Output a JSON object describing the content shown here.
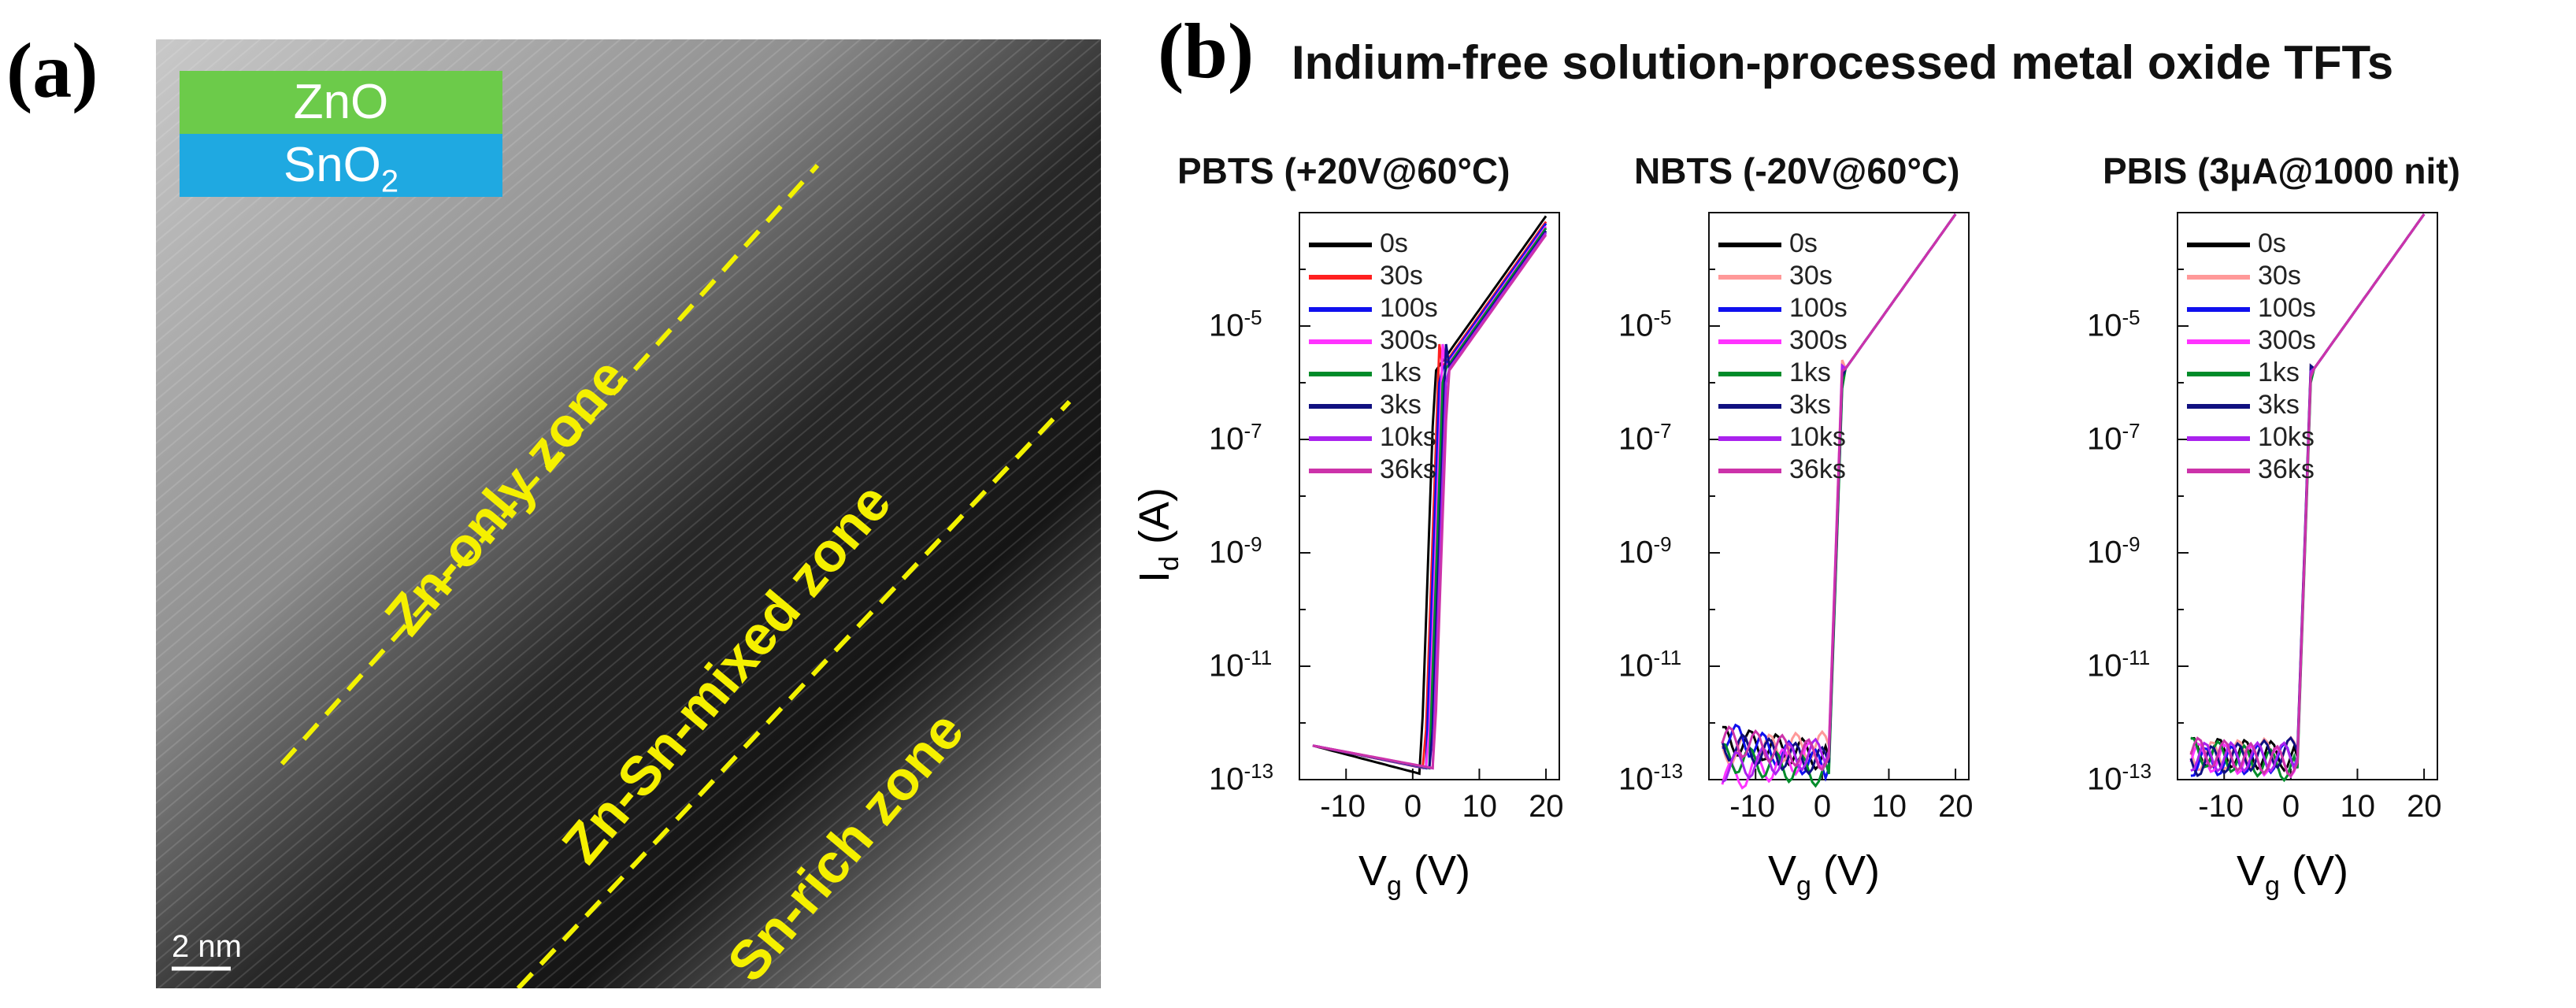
{
  "panel_a": {
    "label": "(a)",
    "layers": [
      {
        "name": "ZnO",
        "color": "#6ccb4a"
      },
      {
        "name": "SnO",
        "sub": "2",
        "color": "#1fa9e1"
      }
    ],
    "zones": [
      "Zn-only zone",
      "Zn-Sn-mixed zone",
      "Sn-rich zone"
    ],
    "scale_bar": "2 nm"
  },
  "panel_b": {
    "label": "(b)",
    "title": "Indium-free solution-processed metal oxide TFTs",
    "ylabel_main": "I",
    "ylabel_sub": "d",
    "ylabel_unit": " (A)",
    "xlabel_main": "V",
    "xlabel_sub": "g",
    "xlabel_unit": " (V)"
  },
  "chart_data": [
    {
      "type": "line",
      "title": "PBTS (+20V@60°C)",
      "xlabel": "Vg (V)",
      "ylabel": "Id (A)",
      "yscale": "log",
      "xlim": [
        -17,
        22
      ],
      "ylim": [
        1e-13,
        0.001
      ],
      "xticks": [
        "-10",
        "0",
        "10",
        "20"
      ],
      "yticks": [
        "10-5",
        "10-7",
        "10-9",
        "10-11",
        "10-13"
      ],
      "series": [
        {
          "name": "0s",
          "color": "#000000",
          "vth": 1.2,
          "off": [
            -12.4,
            -12.9
          ]
        },
        {
          "name": "30s",
          "color": "#ff2020",
          "vth": 1.8,
          "off": [
            -12.4,
            -12.8
          ]
        },
        {
          "name": "100s",
          "color": "#1010ee",
          "vth": 2.0,
          "off": [
            -12.4,
            -12.8
          ]
        },
        {
          "name": "300s",
          "color": "#ff33ff",
          "vth": 2.3,
          "off": [
            -12.4,
            -12.8
          ]
        },
        {
          "name": "1ks",
          "color": "#008c2a",
          "vth": 2.5,
          "off": [
            -12.4,
            -12.8
          ]
        },
        {
          "name": "3ks",
          "color": "#101080",
          "vth": 2.8,
          "off": [
            -12.4,
            -12.8
          ]
        },
        {
          "name": "10ks",
          "color": "#aa22ee",
          "vth": 3.0,
          "off": [
            -12.4,
            -12.8
          ]
        },
        {
          "name": "36ks",
          "color": "#cc33aa",
          "vth": 3.2,
          "off": [
            -12.4,
            -12.8
          ]
        }
      ]
    },
    {
      "type": "line",
      "title": "NBTS (-20V@60°C)",
      "xlabel": "Vg (V)",
      "ylabel": "Id (A)",
      "yscale": "log",
      "xlim": [
        -17,
        22
      ],
      "ylim": [
        1e-13,
        0.001
      ],
      "xticks": [
        "-10",
        "0",
        "10",
        "20"
      ],
      "yticks": [
        "10-5",
        "10-7",
        "10-9",
        "10-11",
        "10-13"
      ],
      "series": [
        {
          "name": "0s",
          "color": "#000000",
          "vth": 1.0,
          "off": [
            -12.3,
            -12.6
          ]
        },
        {
          "name": "30s",
          "color": "#ff9999",
          "vth": 1.0,
          "off": [
            -12.5,
            -12.4
          ]
        },
        {
          "name": "100s",
          "color": "#1010ee",
          "vth": 1.0,
          "off": [
            -12.2,
            -12.8
          ]
        },
        {
          "name": "300s",
          "color": "#ff33ff",
          "vth": 1.0,
          "off": [
            -13.0,
            -12.5
          ]
        },
        {
          "name": "1ks",
          "color": "#008c2a",
          "vth": 1.0,
          "off": [
            -12.6,
            -12.9
          ]
        },
        {
          "name": "3ks",
          "color": "#101080",
          "vth": 1.0,
          "off": [
            -12.4,
            -12.7
          ]
        },
        {
          "name": "10ks",
          "color": "#aa22ee",
          "vth": 1.0,
          "off": [
            -12.8,
            -12.5
          ]
        },
        {
          "name": "36ks",
          "color": "#cc33aa",
          "vth": 1.0,
          "off": [
            -12.3,
            -12.6
          ]
        }
      ]
    },
    {
      "type": "line",
      "title": "PBIS (3μA@1000 nit)",
      "xlabel": "Vg (V)",
      "ylabel": "Id (A)",
      "yscale": "log",
      "xlim": [
        -17,
        22
      ],
      "ylim": [
        1e-13,
        0.001
      ],
      "xticks": [
        "-10",
        "0",
        "10",
        "20"
      ],
      "yticks": [
        "10-5",
        "10-7",
        "10-9",
        "10-11",
        "10-13"
      ],
      "series": [
        {
          "name": "0s",
          "color": "#000000",
          "vth": 1.0,
          "off": [
            -12.5,
            -12.6
          ]
        },
        {
          "name": "30s",
          "color": "#ff9999",
          "vth": 1.0,
          "off": [
            -12.6,
            -12.5
          ]
        },
        {
          "name": "100s",
          "color": "#1010ee",
          "vth": 1.0,
          "off": [
            -12.7,
            -12.6
          ]
        },
        {
          "name": "300s",
          "color": "#ff33ff",
          "vth": 1.0,
          "off": [
            -12.6,
            -12.7
          ]
        },
        {
          "name": "1ks",
          "color": "#008c2a",
          "vth": 1.0,
          "off": [
            -12.5,
            -12.8
          ]
        },
        {
          "name": "3ks",
          "color": "#101080",
          "vth": 1.0,
          "off": [
            -12.7,
            -12.5
          ]
        },
        {
          "name": "10ks",
          "color": "#aa22ee",
          "vth": 1.0,
          "off": [
            -12.6,
            -12.6
          ]
        },
        {
          "name": "36ks",
          "color": "#cc33aa",
          "vth": 1.0,
          "off": [
            -12.5,
            -12.7
          ]
        }
      ]
    }
  ]
}
